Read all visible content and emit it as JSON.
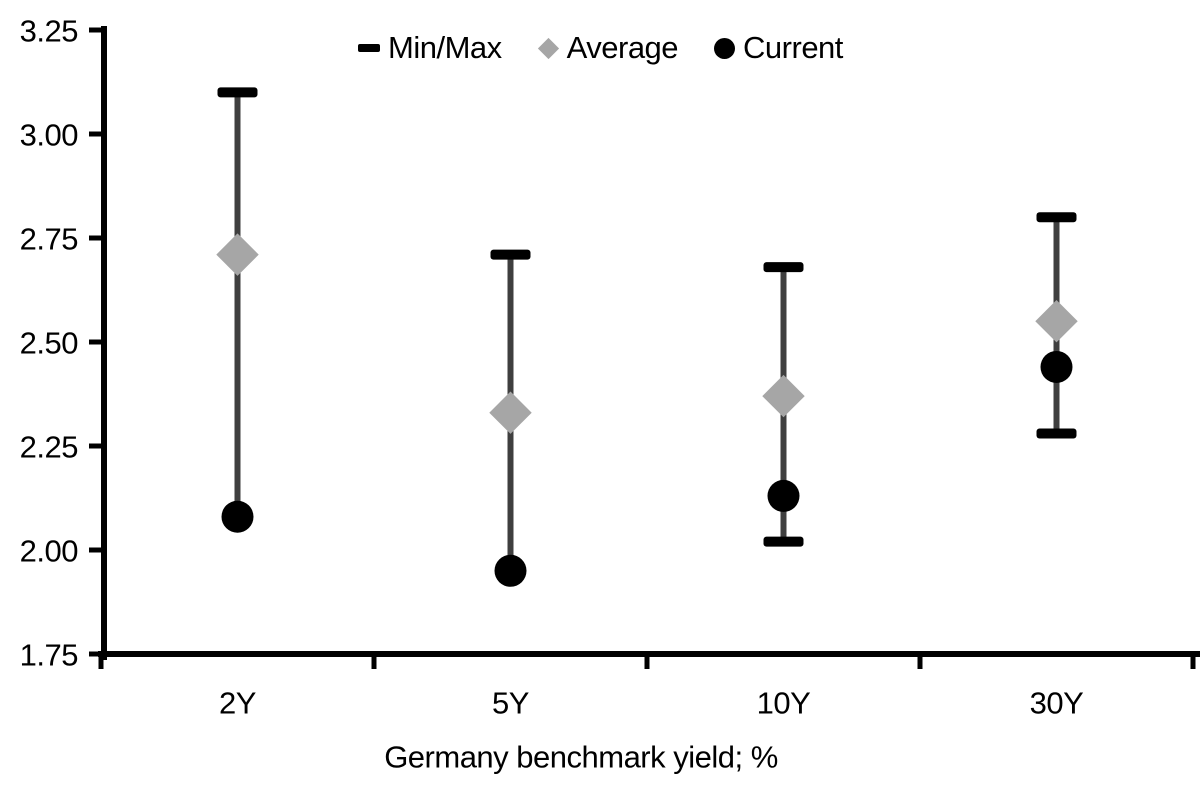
{
  "page": {
    "background": "#ffffff"
  },
  "legend": {
    "items": [
      {
        "label": "Min/Max",
        "marker": "dash-icon"
      },
      {
        "label": "Average",
        "marker": "diamond-icon"
      },
      {
        "label": "Current",
        "marker": "circle-icon"
      }
    ]
  },
  "chart_data": {
    "type": "scatter",
    "subtype": "min-max-range-dot",
    "title": "",
    "xlabel": "Germany benchmark yield; %",
    "ylabel": "",
    "categories": [
      "2Y",
      "5Y",
      "10Y",
      "30Y"
    ],
    "series": [
      {
        "name": "Min/Max",
        "type": "range",
        "marker": "dash",
        "max": [
          3.1,
          2.71,
          2.68,
          2.8
        ],
        "min": [
          2.08,
          1.95,
          2.02,
          2.28
        ]
      },
      {
        "name": "Average",
        "type": "point",
        "marker": "diamond",
        "values": [
          2.71,
          2.33,
          2.37,
          2.55
        ]
      },
      {
        "name": "Current",
        "type": "point",
        "marker": "circle",
        "values": [
          2.08,
          1.95,
          2.13,
          2.44
        ]
      }
    ],
    "ylim": [
      1.75,
      3.25
    ],
    "yticks": [
      3.25,
      3.0,
      2.75,
      2.5,
      2.25,
      2.0,
      1.75
    ],
    "ytick_labels": [
      "3.25",
      "3.00",
      "2.75",
      "2.50",
      "2.25",
      "2.00",
      "1.75"
    ],
    "grid": false,
    "legend_position": "top-center",
    "colors": {
      "black": "#000000",
      "range_line": "#3f3f3f",
      "average_fill": "#a6a6a6",
      "background": "#ffffff"
    }
  }
}
